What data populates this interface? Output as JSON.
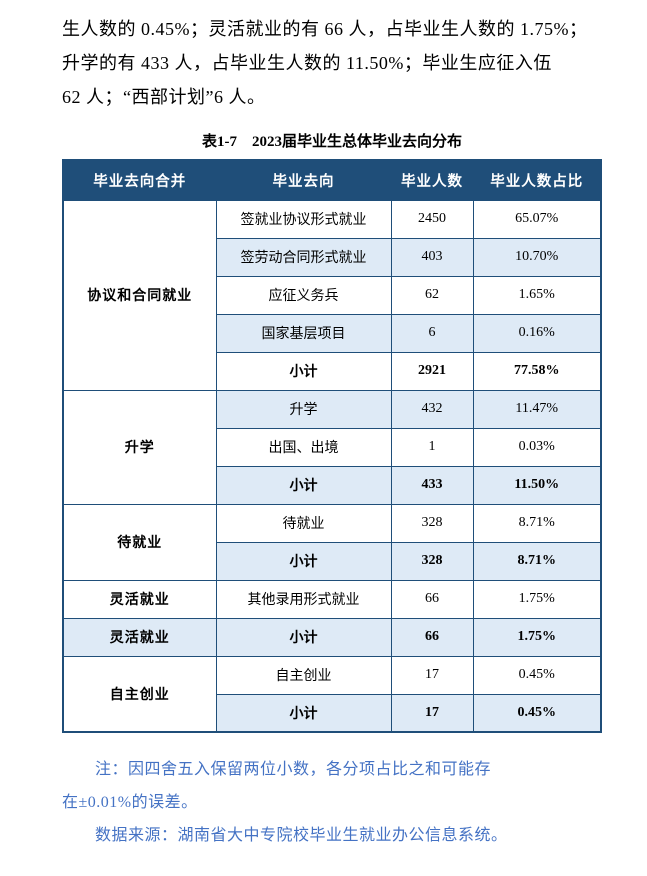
{
  "page": {
    "paragraph_lines": [
      "生人数的 0.45%；灵活就业的有 66 人，占毕业生人数的 1.75%；",
      "升学的有 433 人，占毕业生人数的 11.50%；毕业生应征入伍",
      "62 人；“西部计划”6 人。"
    ],
    "table_title": "表1-7　2023届毕业生总体毕业去向分布",
    "notes": [
      "注：因四舍五入保留两位小数，各分项占比之和可能存",
      "在±0.01%的误差。",
      "数据来源：湖南省大中专院校毕业生就业办公信息系统。"
    ]
  },
  "table": {
    "headers": [
      "毕业去向合并",
      "毕业去向",
      "毕业人数",
      "毕业人数占比"
    ],
    "groups": [
      {
        "label": "协议和合同就业",
        "rows": [
          {
            "destination": "签就业协议形式就业",
            "count": "2450",
            "percent": "65.07%",
            "subtotal": false
          },
          {
            "destination": "签劳动合同形式就业",
            "count": "403",
            "percent": "10.70%",
            "subtotal": false
          },
          {
            "destination": "应征义务兵",
            "count": "62",
            "percent": "1.65%",
            "subtotal": false
          },
          {
            "destination": "国家基层项目",
            "count": "6",
            "percent": "0.16%",
            "subtotal": false
          },
          {
            "destination": "小计",
            "count": "2921",
            "percent": "77.58%",
            "subtotal": true
          }
        ]
      },
      {
        "label": "升学",
        "rows": [
          {
            "destination": "升学",
            "count": "432",
            "percent": "11.47%",
            "subtotal": false
          },
          {
            "destination": "出国、出境",
            "count": "1",
            "percent": "0.03%",
            "subtotal": false
          },
          {
            "destination": "小计",
            "count": "433",
            "percent": "11.50%",
            "subtotal": true
          }
        ]
      },
      {
        "label": "待就业",
        "rows": [
          {
            "destination": "待就业",
            "count": "328",
            "percent": "8.71%",
            "subtotal": false
          },
          {
            "destination": "小计",
            "count": "328",
            "percent": "8.71%",
            "subtotal": true
          }
        ]
      },
      {
        "label": "灵活就业",
        "rows": [
          {
            "destination": "其他录用形式就业",
            "count": "66",
            "percent": "1.75%",
            "subtotal": false
          }
        ]
      },
      {
        "label": "灵活就业",
        "rows": [
          {
            "destination": "小计",
            "count": "66",
            "percent": "1.75%",
            "subtotal": true
          }
        ]
      },
      {
        "label": "自主创业",
        "rows": [
          {
            "destination": "自主创业",
            "count": "17",
            "percent": "0.45%",
            "subtotal": false
          },
          {
            "destination": "小计",
            "count": "17",
            "percent": "0.45%",
            "subtotal": true
          }
        ]
      }
    ]
  },
  "colors": {
    "header_bg": "#1F4E79",
    "row_alt_bg": "#DEEAF6",
    "border": "#1F4E79",
    "note_text": "#4472C4"
  }
}
